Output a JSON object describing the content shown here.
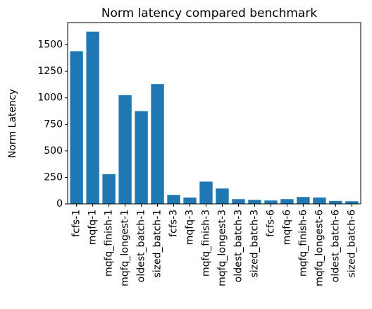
{
  "chart_data": {
    "type": "bar",
    "title": "Norm latency compared benchmark",
    "xlabel": "",
    "ylabel": "Norm Latency",
    "categories": [
      "fcfs-1",
      "mqfq-1",
      "mqfq_finish-1",
      "mqfq_longest-1",
      "oldest_batch-1",
      "sized_batch-1",
      "fcfs-3",
      "mqfq-3",
      "mqfq_finish-3",
      "mqfq_longest-3",
      "oldest_batch-3",
      "sized_batch-3",
      "fcfs-6",
      "mqfq-6",
      "mqfq_finish-6",
      "mqfq_longest-6",
      "oldest_batch-6",
      "sized_batch-6"
    ],
    "values": [
      1440,
      1625,
      280,
      1025,
      875,
      1130,
      85,
      60,
      210,
      145,
      45,
      38,
      32,
      45,
      65,
      60,
      28,
      25
    ],
    "ylim": [
      0,
      1710
    ],
    "yticks": [
      0,
      250,
      500,
      750,
      1000,
      1250,
      1500
    ],
    "bar_color": "#1f77b4",
    "grid": false,
    "legend": "none"
  }
}
